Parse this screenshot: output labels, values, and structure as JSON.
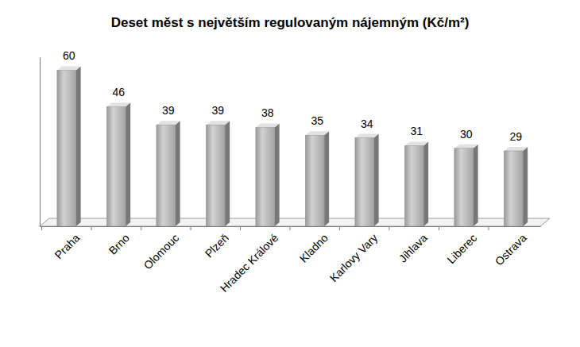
{
  "chart_data": {
    "type": "bar",
    "title": "Deset měst s největším regulovaným nájemným (Kč/m²)",
    "categories": [
      "Praha",
      "Brno",
      "Olomouc",
      "Plzeň",
      "Hradec Králové",
      "Kladno",
      "Karlovy Vary",
      "Jihlava",
      "Liberec",
      "Ostrava"
    ],
    "values": [
      60,
      46,
      39,
      39,
      38,
      35,
      34,
      31,
      30,
      29
    ],
    "color": "#b0b0b0",
    "ylim": [
      0,
      65
    ],
    "grid": false,
    "data_labels": true,
    "tick_labels": "x"
  }
}
